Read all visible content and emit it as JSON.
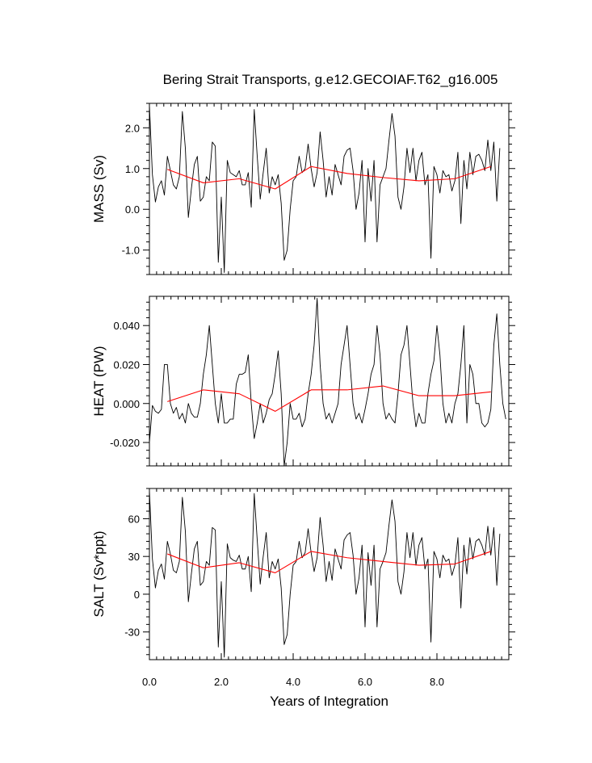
{
  "title": "Bering Strait Transports, g.e12.GECOIAF.T62_g16.005",
  "colors": {
    "monthly_line": "#000000",
    "annual_line": "#ff0000",
    "frame": "#000000"
  },
  "chart_data": [
    {
      "type": "line",
      "id": "mass",
      "title": "Bering Strait Transports, g.e12.GECOIAF.T62_g16.005",
      "ylabel": "MASS (Sv)",
      "xlabel": "",
      "xlim": [
        0,
        10
      ],
      "ylim": [
        -1.6,
        2.6
      ],
      "yticks": [
        -1.0,
        0.0,
        1.0,
        2.0
      ],
      "yticklabels": [
        "-1.0",
        "0.0",
        "1.0",
        "2.0"
      ],
      "grid": false,
      "series": [
        {
          "key": "monthly",
          "color": "#000000",
          "x_start": 0.0,
          "x_step": 0.08333,
          "values": [
            2.55,
            0.85,
            0.18,
            0.55,
            0.7,
            0.35,
            1.3,
            0.95,
            0.6,
            0.5,
            0.8,
            2.4,
            1.5,
            -0.2,
            0.5,
            1.1,
            1.3,
            0.2,
            0.3,
            0.8,
            0.7,
            1.65,
            1.55,
            -1.3,
            0.3,
            -1.55,
            1.2,
            0.9,
            0.85,
            0.8,
            0.95,
            0.6,
            0.6,
            0.9,
            0.05,
            2.45,
            1.3,
            0.25,
            0.9,
            1.5,
            0.4,
            0.8,
            0.6,
            0.85,
            0.15,
            -1.25,
            -1.0,
            0.0,
            0.7,
            0.8,
            1.3,
            0.9,
            1.0,
            1.6,
            1.0,
            0.55,
            0.9,
            1.9,
            1.2,
            0.3,
            0.8,
            0.35,
            1.1,
            0.85,
            0.6,
            1.3,
            1.45,
            1.5,
            0.95,
            0.0,
            0.4,
            1.2,
            -0.8,
            1.0,
            0.2,
            1.2,
            -0.8,
            0.6,
            0.8,
            1.0,
            1.7,
            2.35,
            1.8,
            0.3,
            0.0,
            0.55,
            1.5,
            0.9,
            1.5,
            0.7,
            1.2,
            1.4,
            0.6,
            0.85,
            -1.2,
            1.05,
            0.85,
            0.4,
            0.95,
            0.8,
            0.85,
            0.45,
            0.7,
            1.4,
            -0.35,
            1.2,
            0.5,
            1.4,
            0.85,
            1.3,
            1.35,
            1.2,
            0.95,
            1.7,
            0.95,
            1.65,
            0.2,
            1.5
          ]
        },
        {
          "key": "annual",
          "color": "#ff0000",
          "x": [
            0.5,
            1.5,
            2.5,
            3.5,
            4.5,
            5.5,
            6.5,
            7.5,
            8.5,
            9.5
          ],
          "values": [
            0.98,
            0.65,
            0.75,
            0.5,
            1.05,
            0.88,
            0.78,
            0.7,
            0.75,
            1.05
          ]
        }
      ]
    },
    {
      "type": "line",
      "id": "heat",
      "ylabel": "HEAT (PW)",
      "xlabel": "",
      "xlim": [
        0,
        10
      ],
      "ylim": [
        -0.032,
        0.055
      ],
      "yticks": [
        -0.02,
        0.0,
        0.02,
        0.04
      ],
      "yticklabels": [
        "-0.020",
        "0.000",
        "0.020",
        "0.040"
      ],
      "grid": false,
      "series": [
        {
          "key": "monthly",
          "color": "#000000",
          "x_start": 0.0,
          "x_step": 0.08333,
          "values": [
            -0.02,
            -0.001,
            -0.004,
            -0.005,
            -0.003,
            0.02,
            0.02,
            0.0,
            -0.005,
            -0.002,
            -0.008,
            -0.005,
            -0.01,
            0.0,
            -0.005,
            -0.007,
            -0.007,
            0.0,
            0.015,
            0.025,
            0.04,
            0.02,
            0.0,
            -0.01,
            0.005,
            -0.01,
            -0.01,
            -0.008,
            -0.008,
            0.01,
            0.015,
            0.015,
            0.016,
            0.025,
            0.0,
            -0.018,
            -0.01,
            0.0,
            -0.01,
            -0.005,
            0.002,
            0.005,
            0.015,
            0.027,
            0.005,
            -0.032,
            -0.02,
            0.0,
            -0.008,
            -0.008,
            -0.005,
            -0.012,
            -0.008,
            0.005,
            0.015,
            0.03,
            0.054,
            0.02,
            0.0,
            -0.008,
            -0.005,
            -0.01,
            -0.005,
            0.0,
            0.02,
            0.03,
            0.04,
            0.02,
            0.0,
            -0.008,
            -0.005,
            -0.01,
            -0.003,
            0.005,
            0.015,
            0.02,
            0.04,
            0.025,
            0.0,
            -0.008,
            -0.005,
            -0.008,
            -0.01,
            0.005,
            0.025,
            0.03,
            0.04,
            0.02,
            0.0,
            -0.012,
            -0.005,
            -0.01,
            -0.01,
            0.005,
            0.015,
            0.022,
            0.04,
            0.025,
            0.0,
            -0.01,
            -0.005,
            -0.01,
            0.0,
            0.005,
            0.02,
            0.04,
            -0.01,
            0.02,
            0.015,
            0.0,
            0.0,
            -0.01,
            -0.012,
            -0.01,
            -0.003,
            0.03,
            0.046,
            0.02,
            0.0,
            -0.008
          ]
        },
        {
          "key": "annual",
          "color": "#ff0000",
          "x": [
            0.5,
            1.5,
            2.5,
            3.5,
            4.5,
            5.5,
            6.5,
            7.5,
            8.5,
            9.5
          ],
          "values": [
            0.001,
            0.007,
            0.005,
            -0.004,
            0.007,
            0.007,
            0.009,
            0.004,
            0.004,
            0.006
          ]
        }
      ]
    },
    {
      "type": "line",
      "id": "salt",
      "ylabel": "SALT (Sv*ppt)",
      "xlabel": "Years of Integration",
      "xlim": [
        0,
        10
      ],
      "ylim": [
        -52,
        84
      ],
      "xticks": [
        0,
        2,
        4,
        6,
        8
      ],
      "xticklabels": [
        "0.0",
        "2.0",
        "4.0",
        "6.0",
        "8.0"
      ],
      "yticks": [
        -30,
        0,
        30,
        60
      ],
      "yticklabels": [
        "-30",
        "0",
        "30",
        "60"
      ],
      "grid": false,
      "series": [
        {
          "key": "monthly",
          "color": "#000000",
          "x_start": 0.0,
          "x_step": 0.08333,
          "values": [
            82,
            28,
            5,
            19,
            24,
            12,
            42,
            32,
            19,
            17,
            26,
            77,
            50,
            -6,
            16,
            36,
            42,
            7,
            10,
            26,
            23,
            53,
            51,
            -42,
            10,
            -50,
            40,
            29,
            27,
            26,
            31,
            20,
            20,
            30,
            2,
            80,
            43,
            8,
            30,
            49,
            13,
            26,
            20,
            28,
            5,
            -40,
            -32,
            0,
            23,
            26,
            42,
            29,
            33,
            52,
            33,
            18,
            29,
            61,
            39,
            10,
            26,
            11,
            36,
            28,
            20,
            43,
            47,
            49,
            31,
            0,
            13,
            39,
            -26,
            33,
            7,
            39,
            -26,
            20,
            26,
            33,
            55,
            75,
            58,
            10,
            0,
            18,
            49,
            29,
            49,
            23,
            39,
            45,
            20,
            28,
            -38,
            34,
            28,
            13,
            31,
            26,
            28,
            15,
            23,
            45,
            -11,
            39,
            16,
            45,
            28,
            42,
            44,
            39,
            31,
            54,
            31,
            53,
            7,
            48
          ]
        },
        {
          "key": "annual",
          "color": "#ff0000",
          "x": [
            0.5,
            1.5,
            2.5,
            3.5,
            4.5,
            5.5,
            6.5,
            7.5,
            8.5,
            9.5
          ],
          "values": [
            32,
            21,
            25,
            17,
            34,
            29,
            26,
            23,
            24,
            34
          ]
        }
      ]
    }
  ]
}
